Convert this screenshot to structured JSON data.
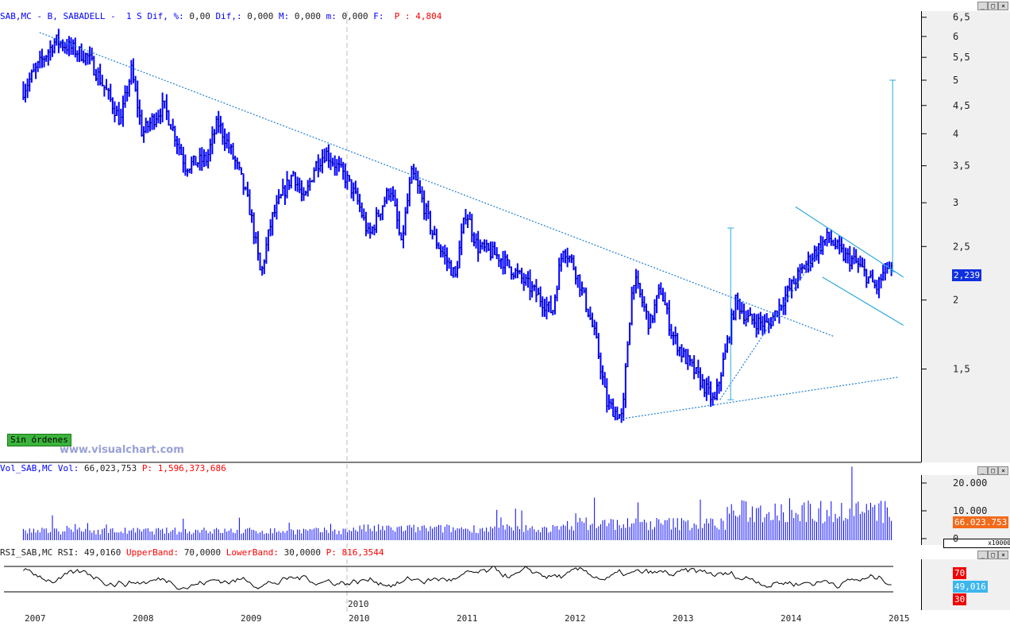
{
  "header": {
    "symbol": "SAB,MC - B, SABADELL -  1 S",
    "dif_pct_label": "Dif, %:",
    "dif_pct": "0,00",
    "dif_label": "Dif,:",
    "dif": "0,000",
    "max_label": "M:",
    "max": "0,000",
    "min_label": "m:",
    "min": "0,000",
    "f_label": "F:",
    "p_label": "P : 4,804"
  },
  "volume_header": {
    "label": "Vol_SAB,MC Vol:",
    "value": "66,023,753",
    "p_label": "P: 1,596,373,686"
  },
  "rsi_header": {
    "label": "RSI_SAB,MC RSI:",
    "value": "49,0160",
    "upper_label": "UpperBand:",
    "upper": "70,0000",
    "lower_label": "LowerBand:",
    "lower": "30,0000",
    "p_label": "P: 816,3544"
  },
  "status_badge": "Sin órdenes",
  "watermark": "www.visualchart.com",
  "colors": {
    "price": "#0000ff",
    "trend": "#1e7fd8",
    "channel": "#2aa9e0",
    "volume_tag": "#f26a1b",
    "rsi_tag": "#3cb6f0",
    "band_tag": "#f00000"
  },
  "chart_data": [
    {
      "type": "candlestick",
      "scale": "log",
      "ylim": [
        1.15,
        6.5
      ],
      "y_ticks": [
        "6,5",
        "6",
        "5,5",
        "5",
        "4,5",
        "4",
        "3,5",
        "3",
        "2,5",
        "2",
        "1,5"
      ],
      "x_ticks": [
        "2007",
        "2008",
        "2009",
        "2010",
        "2011",
        "2012",
        "2013",
        "2014",
        "2015"
      ],
      "last_price": "2,239",
      "close_path": [
        [
          2006.9,
          4.8
        ],
        [
          2007.2,
          5.9
        ],
        [
          2007.5,
          5.5
        ],
        [
          2007.8,
          4.2
        ],
        [
          2007.9,
          5.2
        ],
        [
          2008.0,
          4.0
        ],
        [
          2008.2,
          4.5
        ],
        [
          2008.4,
          3.5
        ],
        [
          2008.6,
          3.6
        ],
        [
          2008.7,
          4.2
        ],
        [
          2008.9,
          3.4
        ],
        [
          2009.0,
          2.9
        ],
        [
          2009.1,
          2.2
        ],
        [
          2009.2,
          2.8
        ],
        [
          2009.4,
          3.4
        ],
        [
          2009.5,
          3.0
        ],
        [
          2009.6,
          3.5
        ],
        [
          2009.7,
          3.7
        ],
        [
          2009.9,
          3.3
        ],
        [
          2010.0,
          3.0
        ],
        [
          2010.1,
          2.6
        ],
        [
          2010.3,
          3.2
        ],
        [
          2010.4,
          2.5
        ],
        [
          2010.5,
          3.4
        ],
        [
          2010.6,
          3.0
        ],
        [
          2010.7,
          2.6
        ],
        [
          2010.9,
          2.2
        ],
        [
          2011.0,
          2.9
        ],
        [
          2011.1,
          2.5
        ],
        [
          2011.3,
          2.4
        ],
        [
          2011.5,
          2.2
        ],
        [
          2011.6,
          2.1
        ],
        [
          2011.8,
          1.9
        ],
        [
          2011.9,
          2.5
        ],
        [
          2012.0,
          2.3
        ],
        [
          2012.1,
          2.0
        ],
        [
          2012.2,
          1.7
        ],
        [
          2012.3,
          1.3
        ],
        [
          2012.45,
          1.22
        ],
        [
          2012.55,
          2.2
        ],
        [
          2012.7,
          1.8
        ],
        [
          2012.8,
          2.1
        ],
        [
          2012.9,
          1.75
        ],
        [
          2013.0,
          1.6
        ],
        [
          2013.15,
          1.45
        ],
        [
          2013.3,
          1.3
        ],
        [
          2013.4,
          1.6
        ],
        [
          2013.5,
          2.0
        ],
        [
          2013.6,
          1.85
        ],
        [
          2013.8,
          1.8
        ],
        [
          2014.0,
          2.1
        ],
        [
          2014.2,
          2.4
        ],
        [
          2014.35,
          2.6
        ],
        [
          2014.5,
          2.4
        ],
        [
          2014.6,
          2.35
        ],
        [
          2014.8,
          2.1
        ],
        [
          2014.9,
          2.3
        ],
        [
          2014.95,
          2.24
        ]
      ],
      "trendlines": [
        {
          "from": [
            2007.05,
            6.1
          ],
          "to": [
            2014.4,
            1.72
          ],
          "style": "dotted"
        },
        {
          "from": [
            2012.45,
            1.22
          ],
          "to": [
            2015.0,
            1.45
          ],
          "style": "dotted"
        },
        {
          "from": [
            2013.35,
            1.32
          ],
          "to": [
            2014.3,
            2.5
          ],
          "style": "dotted"
        },
        {
          "from": [
            2014.05,
            2.95
          ],
          "to": [
            2015.05,
            2.2
          ],
          "style": "solid"
        },
        {
          "from": [
            2014.3,
            2.2
          ],
          "to": [
            2015.05,
            1.8
          ],
          "style": "solid"
        }
      ],
      "targets": [
        {
          "x": 2013.45,
          "from": 1.32,
          "to": 2.7
        },
        {
          "x": 2014.95,
          "from": 2.25,
          "to": 5.0
        }
      ]
    },
    {
      "type": "bar",
      "title": "Volume",
      "unit": "x10000",
      "y_ticks": [
        "20.000",
        "10.000",
        "0"
      ],
      "ylim": [
        0,
        22000
      ],
      "last": "66.023.753"
    },
    {
      "type": "line",
      "title": "RSI",
      "bands": [
        70,
        30
      ],
      "ylim": [
        0,
        100
      ],
      "last": "49,016",
      "band_labels": [
        "70",
        "30"
      ]
    }
  ]
}
